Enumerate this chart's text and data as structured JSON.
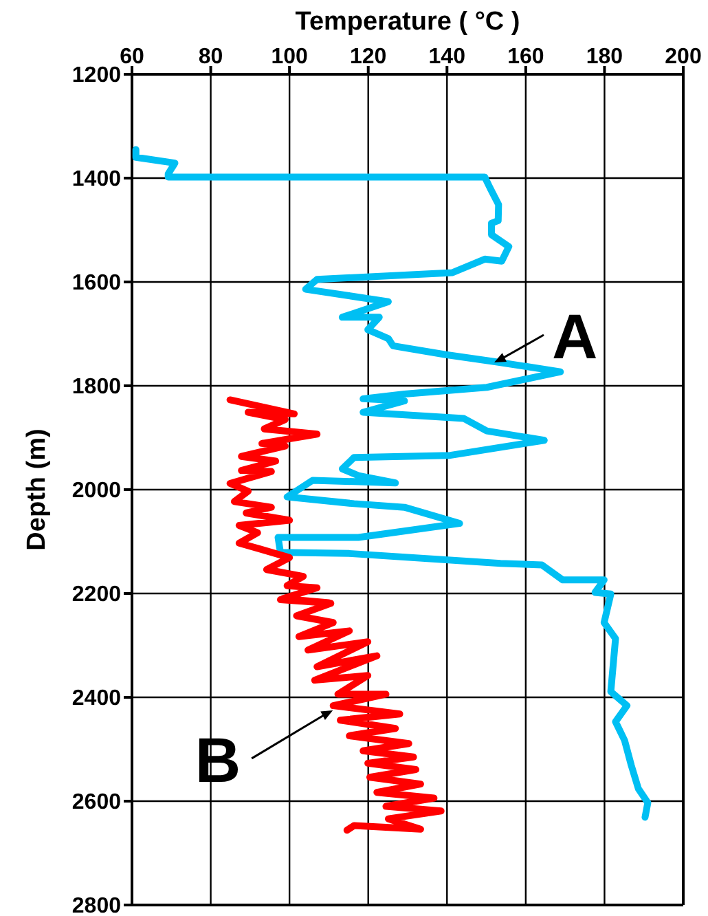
{
  "chart_data": {
    "type": "line",
    "xlabel": "Temperature ( °C )",
    "ylabel": "Depth (m)",
    "xlim": [
      60,
      200
    ],
    "xticks": [
      60,
      80,
      100,
      120,
      140,
      160,
      180,
      200
    ],
    "ylim": [
      2800,
      1200
    ],
    "yticks": [
      1200,
      1400,
      1600,
      1800,
      2000,
      2200,
      2400,
      2600,
      2800
    ],
    "grid": true,
    "legend": false,
    "marker": "none",
    "line_style": "solid",
    "annotations": [
      {
        "text": "A",
        "x": 152,
        "y": 1755
      },
      {
        "text": "B",
        "x": 111,
        "y": 2425
      }
    ],
    "series": [
      {
        "color": "#00bff3",
        "x": [
          61,
          61,
          70.9,
          69.2,
          69.2,
          149.6,
          151,
          153.1,
          153,
          151.3,
          151.3,
          155.7,
          153.9,
          149.6,
          141.4,
          107,
          104.1,
          125.1,
          113.4,
          122.8,
          119.9,
          125.1,
          126.3,
          139.7,
          152.5,
          168.8,
          150.1,
          129.2,
          118.7,
          129.2,
          118.7,
          144.3,
          150.1,
          164.7,
          140.8,
          116.4,
          113.4,
          117.5,
          126.9,
          105.9,
          99.4,
          116.4,
          129.2,
          143.2,
          117.5,
          97.1,
          97.7,
          115.2,
          153.6,
          164.1,
          169.4,
          179.9,
          177.6,
          181.6,
          179.9,
          182.8,
          181.6,
          185.7,
          182.8,
          185.1,
          186.8,
          188.6,
          191,
          190.3
        ],
        "values": [
          1345,
          1360,
          1371,
          1392,
          1398,
          1398,
          1420,
          1451,
          1482,
          1487,
          1509,
          1532,
          1560,
          1556,
          1582,
          1595,
          1614,
          1638,
          1668,
          1668,
          1692,
          1709,
          1723,
          1740,
          1754,
          1773,
          1803,
          1816,
          1825,
          1829,
          1851,
          1863,
          1887,
          1905,
          1934,
          1938,
          1960,
          1973,
          1987,
          1982,
          2014,
          2027,
          2034,
          2065,
          2092,
          2092,
          2121,
          2123,
          2142,
          2145,
          2174,
          2174,
          2198,
          2201,
          2256,
          2287,
          2389,
          2416,
          2447,
          2483,
          2531,
          2576,
          2603,
          2631
        ]
      },
      {
        "color": "#ff0000",
        "x": [
          84.9,
          101.2,
          89.5,
          98.9,
          93.6,
          107,
          93,
          98.9,
          87.8,
          96.5,
          87.8,
          95.4,
          84.9,
          89.5,
          86,
          95.4,
          89,
          100,
          87.2,
          91.9,
          87.2,
          92.4,
          100,
          94.2,
          103.5,
          99.4,
          107,
          98.3,
          110,
          97.7,
          110.5,
          101.8,
          111.1,
          102.4,
          115.2,
          104.7,
          119.9,
          107,
          122.2,
          106.4,
          119.9,
          112.3,
          124.5,
          111.1,
          128,
          112.9,
          126.9,
          115.2,
          130.3,
          118.7,
          131.5,
          119.9,
          132.1,
          120.4,
          133.3,
          122.2,
          136.7,
          124.5,
          138.5,
          125.1,
          133.3,
          116.4,
          114.6
        ],
        "values": [
          1827,
          1854,
          1851,
          1865,
          1883,
          1893,
          1911,
          1916,
          1936,
          1945,
          1963,
          1965,
          1988,
          2003,
          2023,
          2034,
          2045,
          2059,
          2069,
          2083,
          2103,
          2114,
          2131,
          2154,
          2167,
          2185,
          2189,
          2210,
          2218,
          2212,
          2219,
          2243,
          2256,
          2283,
          2272,
          2309,
          2293,
          2341,
          2320,
          2367,
          2358,
          2394,
          2394,
          2416,
          2432,
          2444,
          2460,
          2474,
          2489,
          2503,
          2515,
          2527,
          2539,
          2554,
          2567,
          2583,
          2594,
          2610,
          2619,
          2634,
          2654,
          2647,
          2656
        ]
      }
    ]
  }
}
